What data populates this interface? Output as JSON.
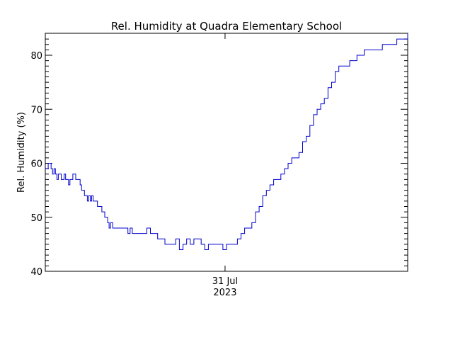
{
  "chart_data": {
    "type": "line",
    "title": "Rel. Humidity at Quadra Elementary School",
    "xlabel": "",
    "ylabel": "Rel. Humidity (%)",
    "ylim": [
      40,
      84
    ],
    "yticks": [
      40,
      50,
      60,
      70,
      80
    ],
    "xticks": [
      {
        "label": "31 Jul",
        "sublabel": "2023",
        "frac": 0.496
      }
    ],
    "grid": false,
    "legend": null,
    "line_color": "#0000cc",
    "series": [
      {
        "name": "Rel. Humidity",
        "x_frac": [
          0.0,
          0.004,
          0.008,
          0.012,
          0.016,
          0.02,
          0.024,
          0.028,
          0.032,
          0.036,
          0.04,
          0.044,
          0.048,
          0.052,
          0.056,
          0.06,
          0.064,
          0.068,
          0.072,
          0.076,
          0.08,
          0.084,
          0.088,
          0.092,
          0.096,
          0.1,
          0.104,
          0.108,
          0.112,
          0.116,
          0.12,
          0.124,
          0.128,
          0.132,
          0.136,
          0.14,
          0.144,
          0.148,
          0.152,
          0.156,
          0.16,
          0.164,
          0.168,
          0.172,
          0.176,
          0.18,
          0.186,
          0.192,
          0.2,
          0.21,
          0.216,
          0.222,
          0.228,
          0.234,
          0.24,
          0.25,
          0.26,
          0.27,
          0.28,
          0.29,
          0.3,
          0.31,
          0.32,
          0.33,
          0.34,
          0.35,
          0.36,
          0.37,
          0.38,
          0.39,
          0.4,
          0.41,
          0.42,
          0.43,
          0.44,
          0.45,
          0.46,
          0.47,
          0.48,
          0.49,
          0.5,
          0.51,
          0.52,
          0.53,
          0.54,
          0.55,
          0.56,
          0.57,
          0.58,
          0.59,
          0.6,
          0.61,
          0.62,
          0.63,
          0.64,
          0.65,
          0.66,
          0.67,
          0.68,
          0.69,
          0.7,
          0.71,
          0.72,
          0.73,
          0.74,
          0.75,
          0.76,
          0.77,
          0.78,
          0.79,
          0.8,
          0.81,
          0.82,
          0.83,
          0.84,
          0.85,
          0.86,
          0.87,
          0.88,
          0.89,
          0.9,
          0.91,
          0.92,
          0.93,
          0.94,
          0.95,
          0.96,
          0.97,
          0.98,
          0.99,
          1.0
        ],
        "values": [
          59,
          59,
          60,
          60,
          59,
          58,
          59,
          58,
          57,
          58,
          58,
          57,
          57,
          58,
          57,
          57,
          56,
          57,
          57,
          58,
          58,
          57,
          57,
          57,
          56,
          55,
          55,
          54,
          54,
          53,
          54,
          53,
          54,
          53,
          53,
          53,
          52,
          52,
          52,
          51,
          51,
          50,
          50,
          49,
          48,
          49,
          48,
          48,
          48,
          48,
          48,
          48,
          47,
          48,
          47,
          47,
          47,
          47,
          48,
          47,
          47,
          46,
          46,
          45,
          45,
          45,
          46,
          44,
          45,
          46,
          45,
          46,
          46,
          45,
          44,
          45,
          45,
          45,
          45,
          44,
          45,
          45,
          45,
          46,
          47,
          48,
          48,
          49,
          51,
          52,
          54,
          55,
          56,
          57,
          57,
          58,
          59,
          60,
          61,
          61,
          62,
          64,
          65,
          67,
          69,
          70,
          71,
          72,
          74,
          75,
          77,
          78,
          78,
          78,
          79,
          79,
          80,
          80,
          81,
          81,
          81,
          81,
          81,
          82,
          82,
          82,
          82,
          83,
          83,
          83,
          84
        ]
      }
    ]
  }
}
